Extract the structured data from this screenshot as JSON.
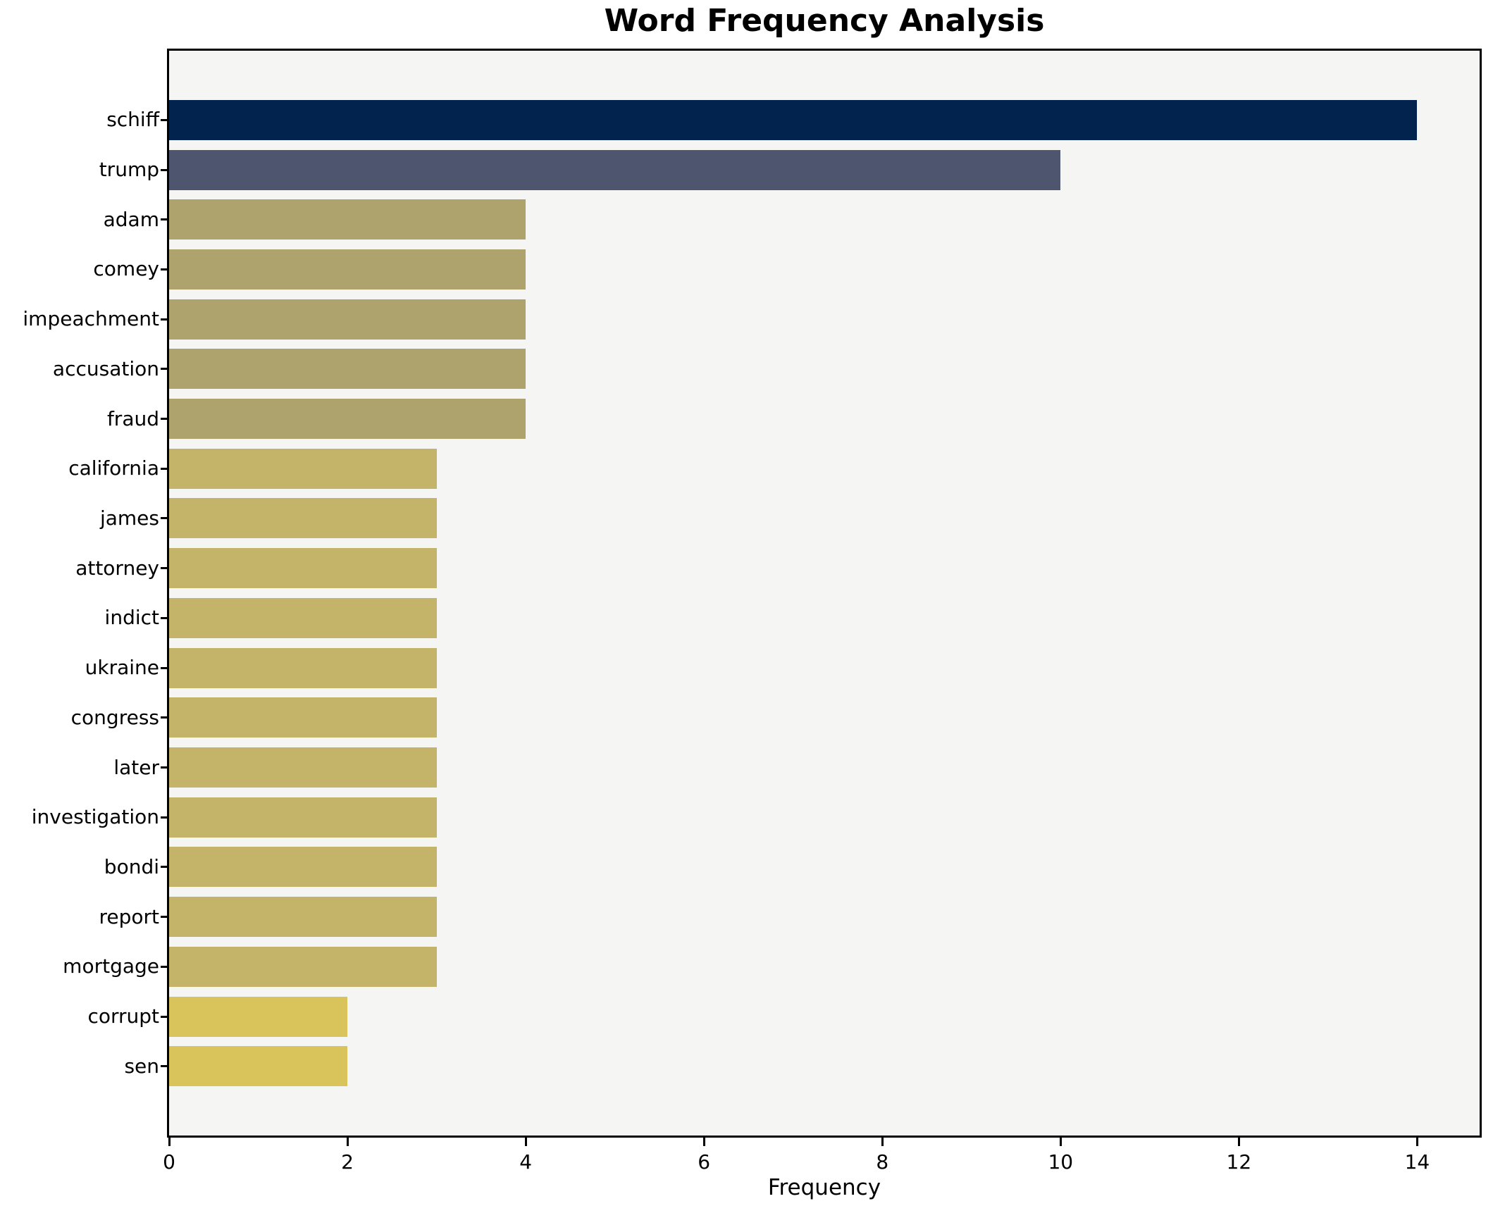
{
  "title": "Word Frequency Analysis",
  "chart_data": {
    "type": "bar",
    "orientation": "horizontal",
    "title": "Word Frequency Analysis",
    "xlabel": "Frequency",
    "ylabel": "",
    "categories": [
      "schiff",
      "trump",
      "adam",
      "comey",
      "impeachment",
      "accusation",
      "fraud",
      "california",
      "james",
      "attorney",
      "indict",
      "ukraine",
      "congress",
      "later",
      "investigation",
      "bondi",
      "report",
      "mortgage",
      "corrupt",
      "sen"
    ],
    "values": [
      14,
      10,
      4,
      4,
      4,
      4,
      4,
      3,
      3,
      3,
      3,
      3,
      3,
      3,
      3,
      3,
      3,
      3,
      2,
      2
    ],
    "bar_colors": [
      "#02234d",
      "#4d566e",
      "#aea36c",
      "#aea36c",
      "#aea36c",
      "#aea36c",
      "#aea36c",
      "#c4b469",
      "#c4b469",
      "#c4b469",
      "#c4b469",
      "#c4b469",
      "#c4b469",
      "#c4b469",
      "#c4b469",
      "#c4b469",
      "#c4b469",
      "#c4b469",
      "#d9c45c",
      "#d9c45c"
    ],
    "xlim": [
      0,
      14.7
    ],
    "xticks": [
      0,
      2,
      4,
      6,
      8,
      10,
      12,
      14
    ],
    "grid": false,
    "legend": null,
    "plot_background": "#f5f5f4",
    "figure_background": "#ffffff",
    "spine_color": "#000000",
    "text_color": "#000000"
  }
}
